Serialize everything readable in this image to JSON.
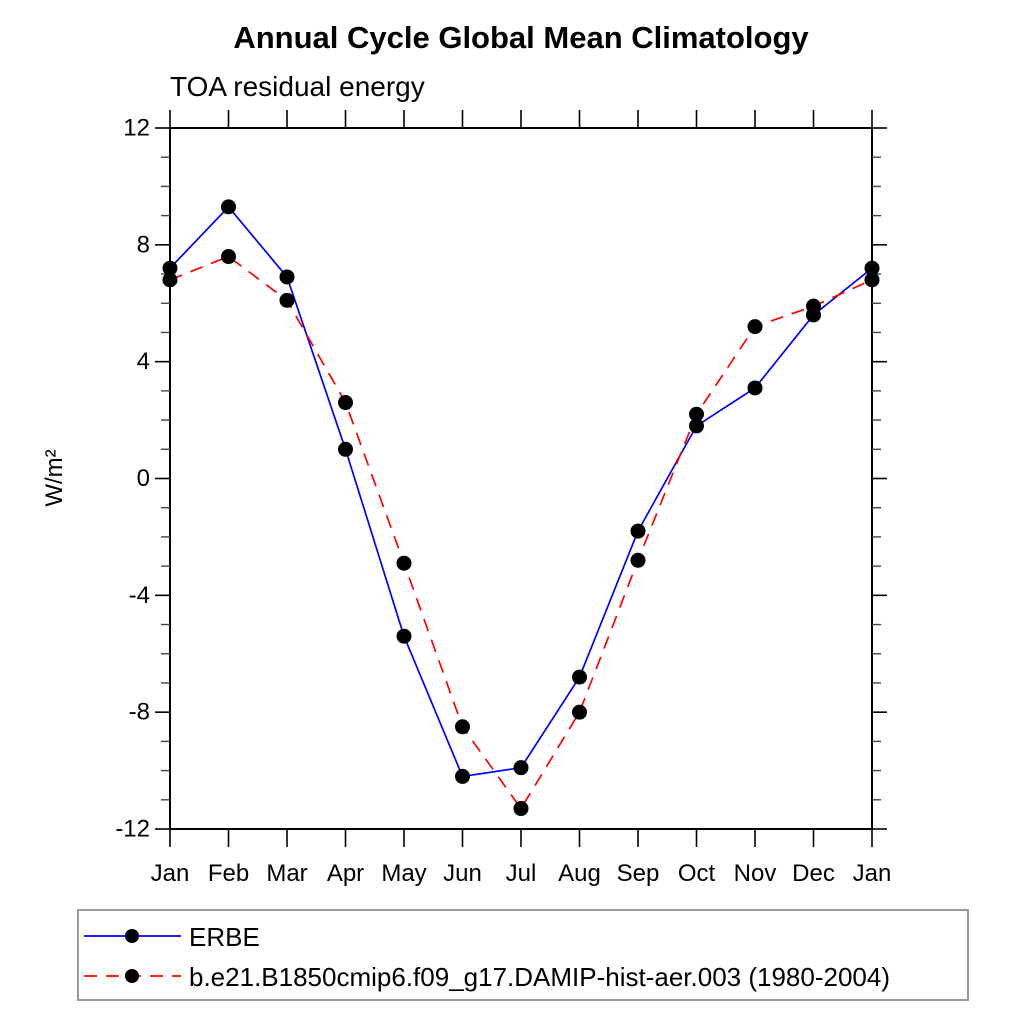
{
  "page": {
    "background": "#ffffff"
  },
  "chart_data": {
    "type": "line",
    "title": "Annual Cycle Global Mean Climatology",
    "subtitle": "TOA residual energy",
    "xlabel": "",
    "ylabel": "W/m²",
    "x_labels": [
      "Jan",
      "Feb",
      "Mar",
      "Apr",
      "May",
      "Jun",
      "Jul",
      "Aug",
      "Sep",
      "Oct",
      "Nov",
      "Dec",
      "Jan"
    ],
    "ylim": [
      -12,
      12
    ],
    "ytick_major": [
      12,
      8,
      4,
      0,
      -4,
      -8,
      -12
    ],
    "ytick_minor_step": 1,
    "grid": false,
    "legend_position": "bottom-left-box",
    "marker": "filled-circle",
    "marker_color": "#000000",
    "axis_color": "#000000",
    "series": [
      {
        "name": "ERBE",
        "color": "#0000ff",
        "line_style": "solid",
        "values": [
          7.2,
          9.3,
          6.9,
          1.0,
          -5.4,
          -10.2,
          -9.9,
          -6.8,
          -1.8,
          1.8,
          3.1,
          5.6,
          7.2
        ]
      },
      {
        "name": "b.e21.B1850cmip6.f09_g17.DAMIP-hist-aer.003 (1980-2004)",
        "color": "#ff0000",
        "line_style": "dashed",
        "values": [
          6.8,
          7.6,
          6.1,
          2.6,
          -2.9,
          -8.5,
          -11.3,
          -8.0,
          -2.8,
          2.2,
          5.2,
          5.9,
          6.8
        ]
      }
    ]
  }
}
